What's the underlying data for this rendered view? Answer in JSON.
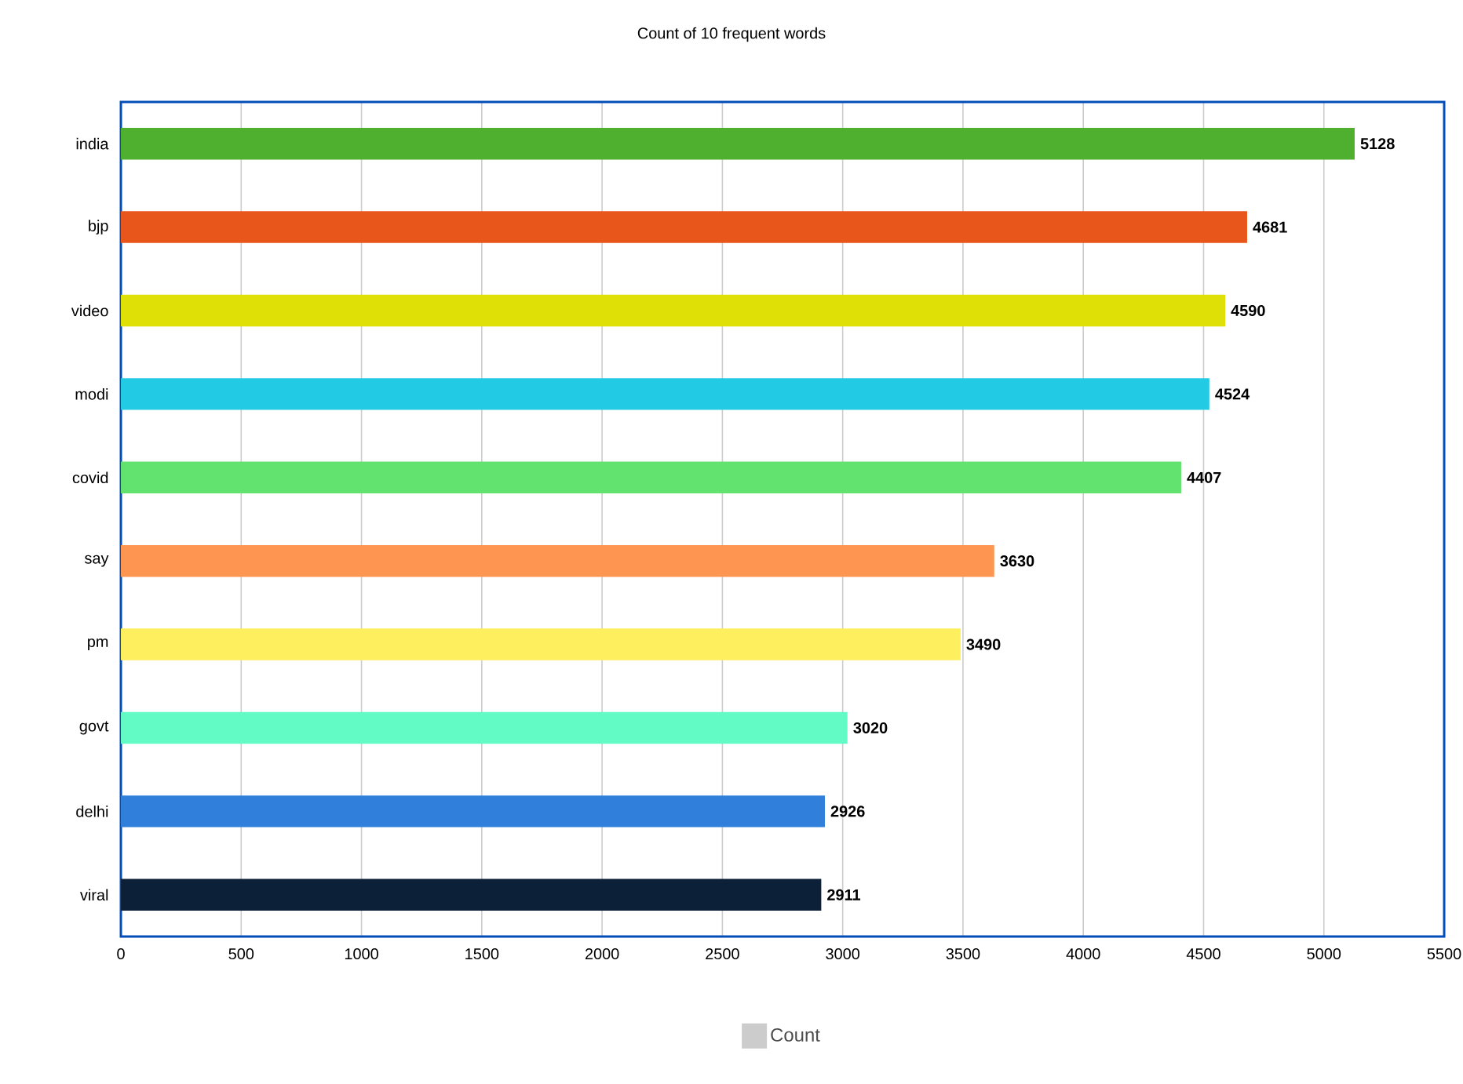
{
  "chart_data": {
    "type": "bar",
    "orientation": "horizontal",
    "title": "Count of 10 frequent words",
    "categories": [
      "india",
      "bjp",
      "video",
      "modi",
      "covid",
      "say",
      "pm",
      "govt",
      "delhi",
      "viral"
    ],
    "series": [
      {
        "name": "Count",
        "color": "#cccccc",
        "colors": [
          "#4fb030",
          "#e9561c",
          "#dfe006",
          "#22cbe3",
          "#62e26e",
          "#fe9652",
          "#fdef5e",
          "#63fbc5",
          "#2f7fdb",
          "#0c2038"
        ],
        "values": [
          5128,
          4681,
          4590,
          4524,
          4407,
          3630,
          3490,
          3020,
          2926,
          2911
        ]
      }
    ],
    "xlim": [
      0,
      5500
    ],
    "xticks": [
      0,
      500,
      1000,
      1500,
      2000,
      2500,
      3000,
      3500,
      4000,
      4500,
      5000,
      5500
    ],
    "grid": "x",
    "data_labels": true,
    "legend": "bottom"
  }
}
